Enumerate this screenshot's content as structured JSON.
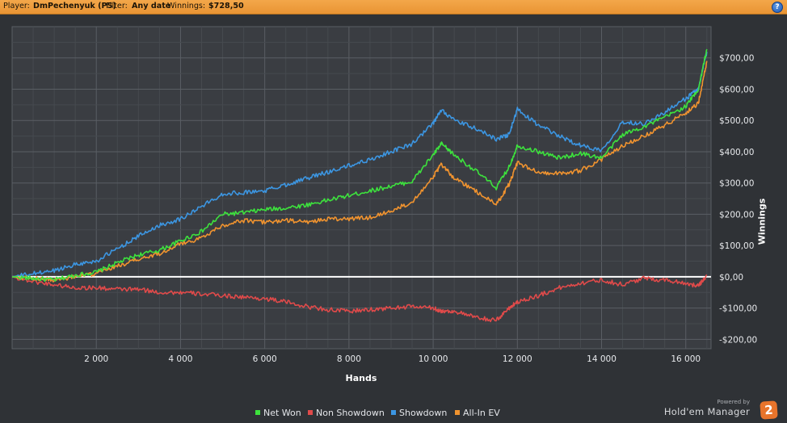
{
  "header": {
    "player_label": "Player:",
    "player_value": "DmPechenyuk (PS)",
    "filter_label": "Filter:",
    "filter_value": "Any date",
    "winnings_label": "Winnings:",
    "winnings_value": "$728,50",
    "help_glyph": "?"
  },
  "branding": {
    "powered_by": "Powered by",
    "name": "Hold'em Manager",
    "logo_text": "2"
  },
  "colors": {
    "background": "#2f3236",
    "header": "#efa041",
    "net_won": "#3de23d",
    "non_showdown": "#e04a4a",
    "showdown": "#3c96e2",
    "all_in_ev": "#f0932f"
  },
  "chart_data": {
    "type": "line",
    "xlabel": "Hands",
    "ylabel": "Winnings",
    "xlim": [
      0,
      16600
    ],
    "ylim": [
      -230,
      800
    ],
    "x_ticks": [
      2000,
      4000,
      6000,
      8000,
      10000,
      12000,
      14000,
      16000
    ],
    "x_tick_labels": [
      "2 000",
      "4 000",
      "6 000",
      "8 000",
      "10 000",
      "12 000",
      "14 000",
      "16 000"
    ],
    "y_ticks": [
      700,
      600,
      500,
      400,
      300,
      200,
      100,
      0,
      -100,
      -200
    ],
    "y_tick_labels": [
      "$700,00",
      "$600,00",
      "$500,00",
      "$400,00",
      "$300,00",
      "$200,00",
      "$100,00",
      "$0,00",
      "-$100,00",
      "-$200,00"
    ],
    "grid": true,
    "legend_position": "bottom",
    "x": [
      0,
      500,
      1000,
      1500,
      2000,
      2500,
      3000,
      3500,
      4000,
      4500,
      5000,
      5500,
      6000,
      6500,
      7000,
      7500,
      8000,
      8500,
      9000,
      9500,
      10000,
      10200,
      10500,
      11000,
      11500,
      11800,
      12000,
      12500,
      13000,
      13500,
      14000,
      14500,
      15000,
      15500,
      16000,
      16300,
      16500
    ],
    "series": [
      {
        "name": "Net Won",
        "color": "#3de23d",
        "values": [
          0,
          -5,
          -10,
          5,
          15,
          45,
          70,
          85,
          115,
          145,
          200,
          205,
          215,
          220,
          230,
          245,
          260,
          275,
          290,
          305,
          390,
          425,
          390,
          340,
          285,
          350,
          420,
          400,
          380,
          395,
          380,
          455,
          480,
          510,
          545,
          600,
          728
        ]
      },
      {
        "name": "Non Showdown",
        "color": "#e04a4a",
        "values": [
          0,
          -15,
          -25,
          -35,
          -35,
          -40,
          -40,
          -50,
          -50,
          -55,
          -60,
          -65,
          -70,
          -80,
          -95,
          -105,
          -110,
          -105,
          -100,
          -95,
          -100,
          -110,
          -110,
          -130,
          -140,
          -100,
          -80,
          -60,
          -35,
          -20,
          -10,
          -25,
          -5,
          -10,
          -20,
          -30,
          5
        ]
      },
      {
        "name": "Showdown",
        "color": "#3c96e2",
        "values": [
          0,
          10,
          20,
          40,
          50,
          90,
          130,
          165,
          185,
          225,
          265,
          270,
          275,
          295,
          315,
          335,
          355,
          375,
          400,
          425,
          490,
          535,
          500,
          475,
          440,
          455,
          535,
          485,
          450,
          420,
          405,
          495,
          490,
          525,
          570,
          600,
          720
        ]
      },
      {
        "name": "All-In EV",
        "color": "#f0932f",
        "values": [
          0,
          -5,
          -10,
          0,
          10,
          35,
          55,
          75,
          105,
          125,
          165,
          180,
          175,
          180,
          175,
          185,
          185,
          190,
          210,
          240,
          320,
          360,
          315,
          275,
          230,
          295,
          365,
          335,
          330,
          340,
          375,
          420,
          450,
          485,
          525,
          555,
          690
        ]
      }
    ]
  }
}
